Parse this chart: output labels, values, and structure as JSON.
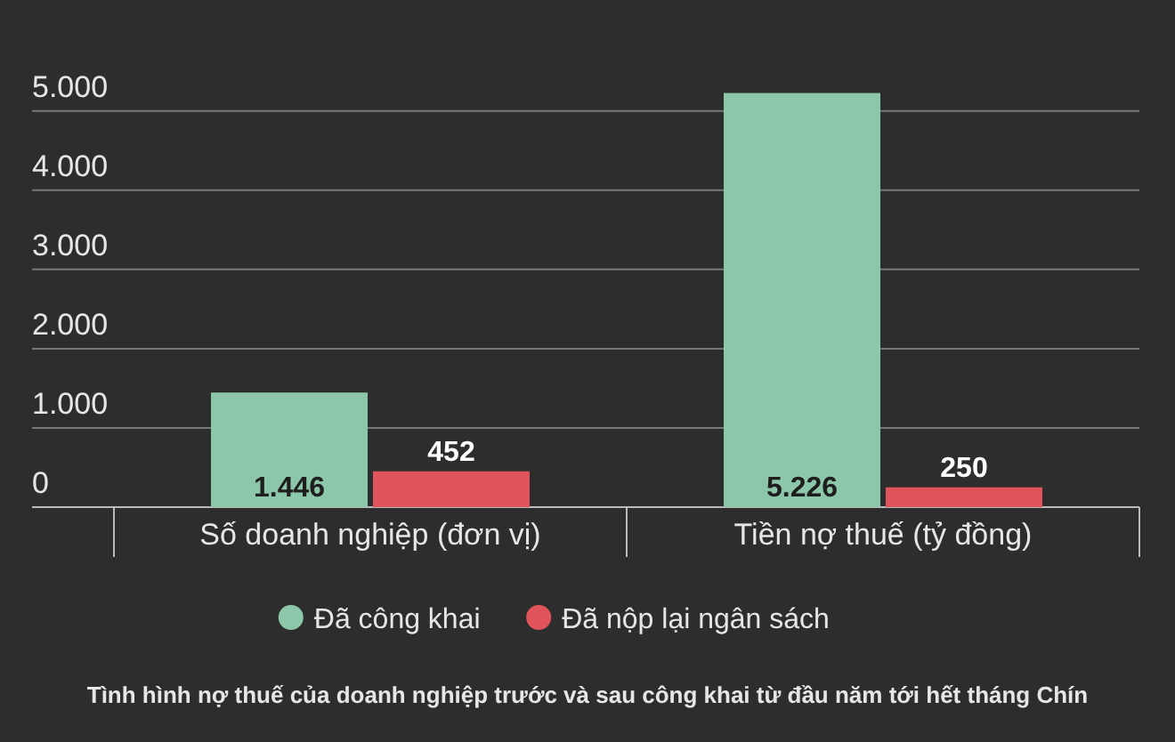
{
  "chart_data": {
    "type": "bar",
    "title": "Tình hình nợ thuế của doanh nghiệp trước và sau công khai từ đầu năm tới hết tháng Chín",
    "categories": [
      "Số doanh nghiệp (đơn vị)",
      "Tiền nợ thuế (tỷ đồng)"
    ],
    "series": [
      {
        "name": "Đã công khai",
        "color": "#8dc7a9",
        "values": [
          1446,
          5226
        ]
      },
      {
        "name": "Đã nộp lại ngân sách",
        "color": "#e0535a",
        "values": [
          452,
          250
        ]
      }
    ],
    "value_labels": [
      [
        "1.446",
        "5.226"
      ],
      [
        "452",
        "250"
      ]
    ],
    "ylim": [
      0,
      6400
    ],
    "yticks": [
      {
        "value": 0,
        "label": "0"
      },
      {
        "value": 1000,
        "label": "1.000"
      },
      {
        "value": 2000,
        "label": "2.000"
      },
      {
        "value": 3000,
        "label": "3.000"
      },
      {
        "value": 4000,
        "label": "4.000"
      },
      {
        "value": 5000,
        "label": "5.000"
      }
    ],
    "grid": "y",
    "legend": "bottom"
  }
}
